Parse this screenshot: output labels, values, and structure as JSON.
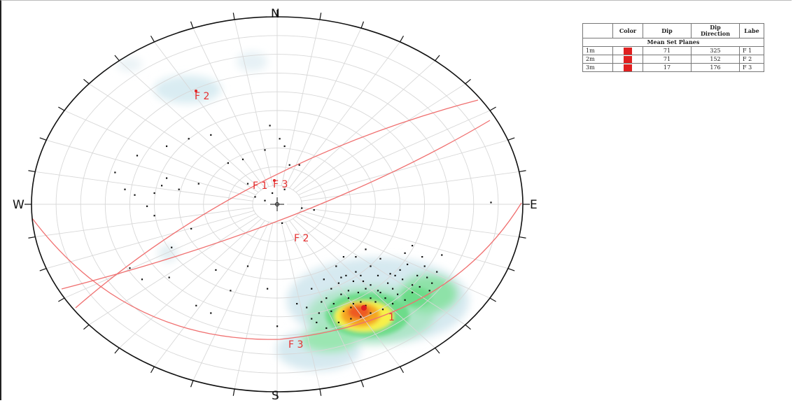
{
  "compass": {
    "north": "N",
    "south": "S",
    "east": "E",
    "west": "W"
  },
  "legend": {
    "headers": [
      "",
      "Color",
      "Dip",
      "Dip Direction",
      "Labe"
    ],
    "section_title": "Mean Set Planes",
    "rows": [
      {
        "id": "1m",
        "color": "#e02020",
        "dip": "71",
        "dip_direction": "325",
        "label": "F 1"
      },
      {
        "id": "2m",
        "color": "#e02020",
        "dip": "71",
        "dip_direction": "152",
        "label": "F 2"
      },
      {
        "id": "3m",
        "color": "#e02020",
        "dip": "17",
        "dip_direction": "176",
        "label": "F 3"
      }
    ]
  },
  "plane_labels": {
    "f1_pole": "F 1",
    "f3_pole": "F 3",
    "f2_pole": "F 2",
    "f2_plane": "F 2",
    "f3_plane": "F 3",
    "f1_plane_partial": "1"
  },
  "colors": {
    "great_circle": "#f07070",
    "label": "#e53030",
    "grid": "#d8d8d8",
    "outline": "#111111",
    "density_low": "#d9ecf2",
    "density_mid": "#6ddc8a",
    "density_high": "#f7f04a",
    "density_peak": "#ee5a20"
  },
  "poles": [
    [
      -0.62,
      0.08
    ],
    [
      -0.58,
      0.05
    ],
    [
      -0.53,
      -0.01
    ],
    [
      -0.5,
      0.06
    ],
    [
      -0.47,
      0.1
    ],
    [
      -0.45,
      0.14
    ],
    [
      -0.4,
      0.08
    ],
    [
      -0.32,
      0.11
    ],
    [
      -0.2,
      0.22
    ],
    [
      -0.12,
      0.11
    ],
    [
      -0.02,
      0.06
    ],
    [
      0.03,
      0.08
    ],
    [
      -0.09,
      0.04
    ],
    [
      -0.66,
      0.17
    ],
    [
      -0.57,
      0.26
    ],
    [
      -0.45,
      0.31
    ],
    [
      -0.36,
      0.35
    ],
    [
      -0.27,
      0.37
    ],
    [
      -0.14,
      0.24
    ],
    [
      -0.05,
      0.29
    ],
    [
      0.03,
      0.31
    ],
    [
      -0.03,
      0.42
    ],
    [
      0.01,
      0.35
    ],
    [
      0.15,
      -0.03
    ],
    [
      0.1,
      -0.02
    ],
    [
      0.05,
      0.21
    ],
    [
      0.09,
      0.21
    ],
    [
      -0.05,
      0.02
    ],
    [
      0.02,
      -0.1
    ],
    [
      -0.35,
      -0.13
    ],
    [
      -0.43,
      -0.23
    ],
    [
      -0.5,
      -0.06
    ],
    [
      -0.6,
      -0.34
    ],
    [
      -0.44,
      -0.39
    ],
    [
      -0.55,
      -0.4
    ],
    [
      -0.25,
      -0.35
    ],
    [
      -0.12,
      -0.33
    ],
    [
      -0.19,
      -0.46
    ],
    [
      -0.04,
      -0.45
    ],
    [
      -0.33,
      -0.54
    ],
    [
      -0.27,
      -0.58
    ],
    [
      0.0,
      -0.65
    ],
    [
      0.42,
      -0.29
    ],
    [
      0.38,
      -0.33
    ],
    [
      0.46,
      -0.37
    ],
    [
      0.51,
      -0.4
    ],
    [
      0.6,
      -0.33
    ],
    [
      0.55,
      -0.43
    ],
    [
      0.49,
      -0.48
    ],
    [
      0.62,
      -0.46
    ],
    [
      0.65,
      -0.36
    ],
    [
      0.67,
      -0.27
    ],
    [
      0.87,
      0.01
    ],
    [
      0.42,
      -0.47
    ],
    [
      0.38,
      -0.5
    ],
    [
      0.34,
      -0.52
    ],
    [
      0.31,
      -0.53
    ],
    [
      0.3,
      -0.55
    ],
    [
      0.27,
      -0.57
    ],
    [
      0.22,
      -0.57
    ],
    [
      0.17,
      -0.58
    ],
    [
      0.14,
      -0.61
    ],
    [
      0.16,
      -0.63
    ],
    [
      0.2,
      -0.66
    ],
    [
      0.25,
      -0.63
    ],
    [
      0.3,
      -0.61
    ],
    [
      0.34,
      -0.6
    ],
    [
      0.38,
      -0.58
    ],
    [
      0.43,
      -0.56
    ],
    [
      0.47,
      -0.53
    ],
    [
      0.52,
      -0.51
    ],
    [
      0.55,
      -0.47
    ],
    [
      0.2,
      -0.5
    ],
    [
      0.22,
      -0.45
    ],
    [
      0.25,
      -0.42
    ],
    [
      0.28,
      -0.38
    ],
    [
      0.32,
      -0.36
    ],
    [
      0.35,
      -0.41
    ],
    [
      0.38,
      -0.43
    ],
    [
      0.41,
      -0.38
    ],
    [
      0.45,
      -0.42
    ],
    [
      0.48,
      -0.38
    ],
    [
      0.5,
      -0.35
    ],
    [
      0.53,
      -0.32
    ],
    [
      0.57,
      -0.38
    ],
    [
      0.58,
      -0.44
    ],
    [
      0.61,
      -0.39
    ],
    [
      0.63,
      -0.42
    ],
    [
      0.59,
      -0.28
    ],
    [
      0.55,
      -0.22
    ],
    [
      0.52,
      -0.26
    ],
    [
      0.27,
      -0.28
    ],
    [
      0.32,
      -0.28
    ],
    [
      0.36,
      -0.24
    ],
    [
      0.24,
      -0.33
    ],
    [
      0.19,
      -0.4
    ],
    [
      0.14,
      -0.45
    ],
    [
      0.08,
      -0.53
    ],
    [
      0.12,
      -0.55
    ],
    [
      0.29,
      -0.46
    ],
    [
      0.33,
      -0.47
    ],
    [
      0.4,
      -0.52
    ],
    [
      0.44,
      -0.5
    ],
    [
      0.31,
      -0.41
    ],
    [
      0.26,
      -0.48
    ],
    [
      0.36,
      -0.45
    ],
    [
      0.41,
      -0.46
    ],
    [
      0.47,
      -0.45
    ],
    [
      0.23,
      -0.53
    ],
    [
      0.18,
      -0.52
    ],
    [
      0.36,
      -0.54
    ],
    [
      0.29,
      -0.5
    ],
    [
      0.34,
      -0.38
    ],
    [
      0.26,
      -0.39
    ]
  ]
}
